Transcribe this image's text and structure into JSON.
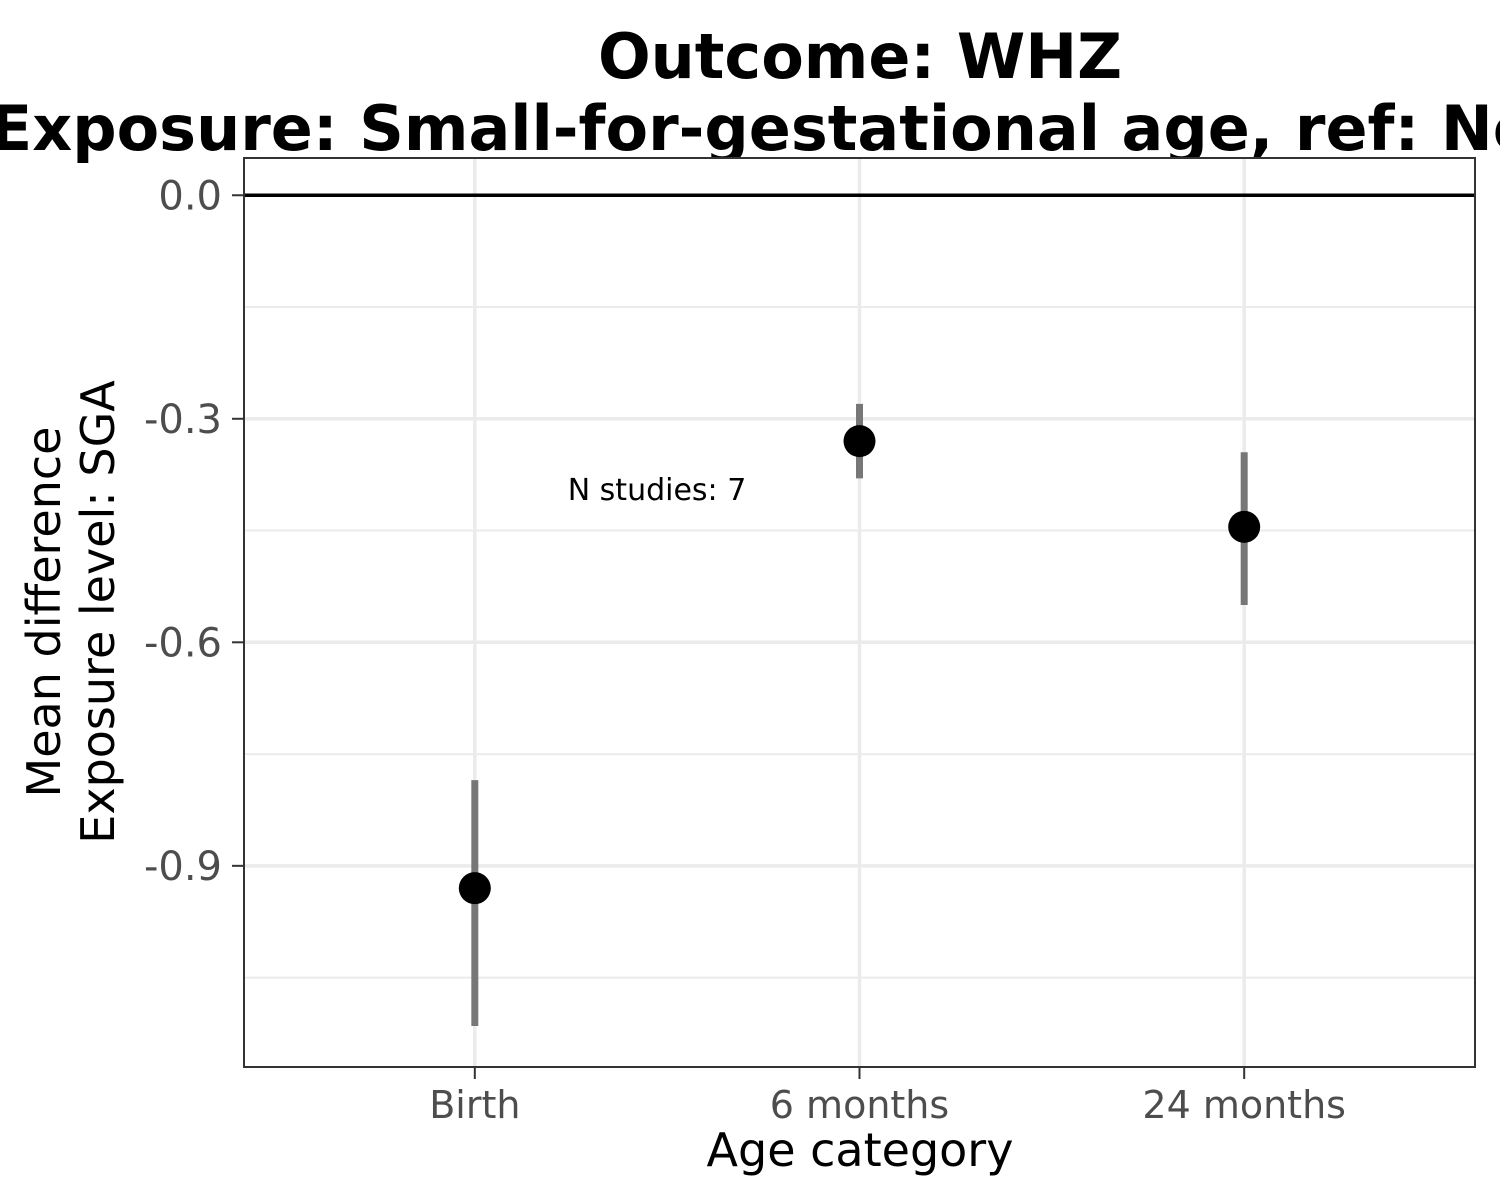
{
  "chart_data": {
    "type": "scatter",
    "title": "Outcome: WHZ",
    "subtitle": "Exposure: Small-for-gestational age, ref: Not SGA",
    "xlabel": "Age category",
    "ylabel": "Mean difference",
    "ylabel2": "Exposure level: SGA",
    "categories": [
      "Birth",
      "6 months",
      "24 months"
    ],
    "estimates": [
      -0.93,
      -0.33,
      -0.445
    ],
    "ci_lower": [
      -1.115,
      -0.38,
      -0.55
    ],
    "ci_upper": [
      -0.785,
      -0.28,
      -0.345
    ],
    "ylim": [
      -1.17,
      0.05
    ],
    "yticks": [
      0.0,
      -0.3,
      -0.6,
      -0.9
    ],
    "ytick_labels": [
      "0.0",
      "-0.3",
      "-0.6",
      "-0.9"
    ],
    "reference_line": 0.0,
    "annotation": "N studies: 7",
    "grid": true,
    "legend": "none"
  }
}
